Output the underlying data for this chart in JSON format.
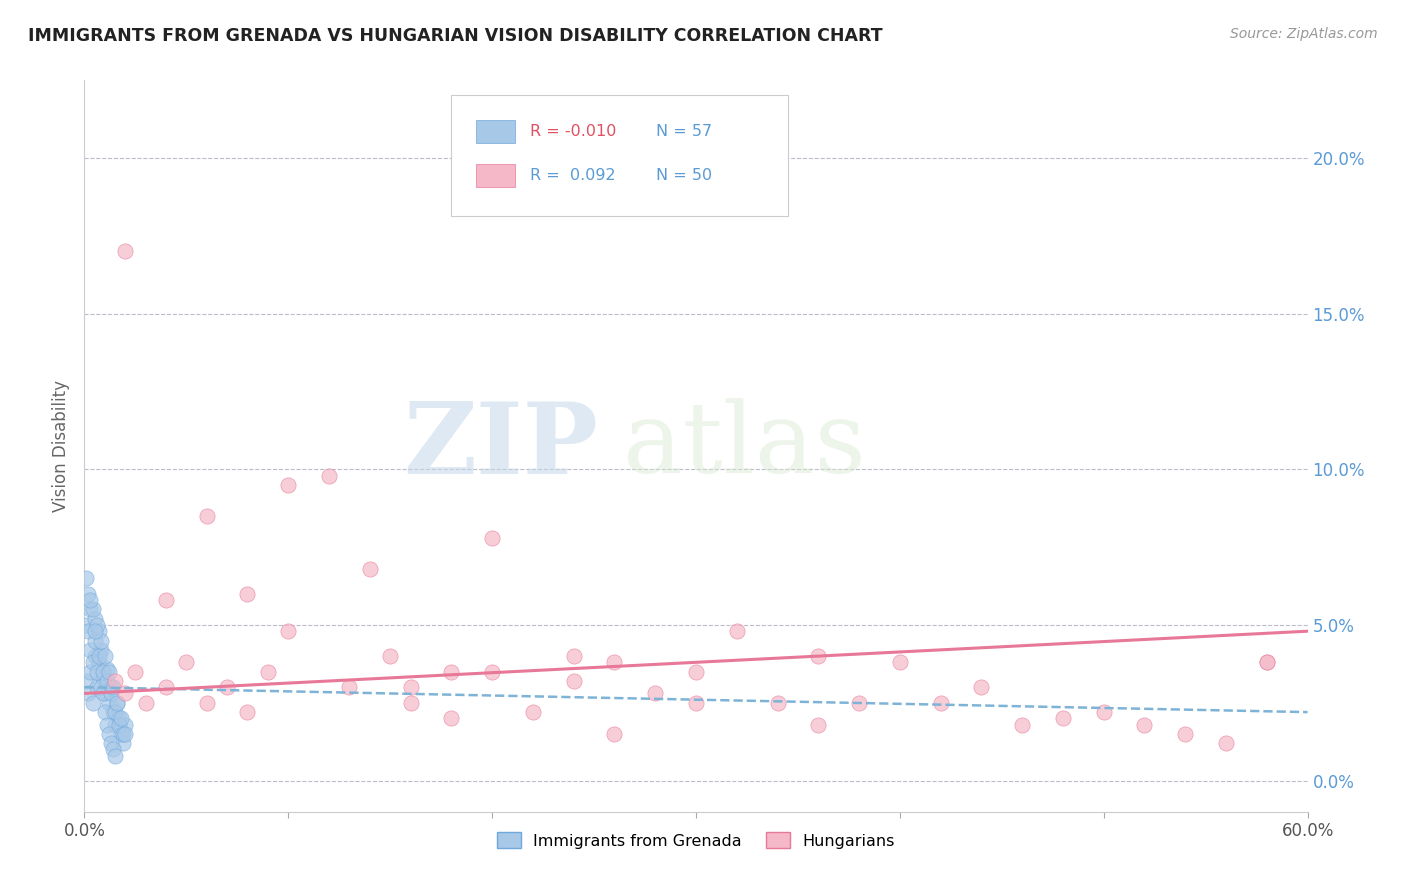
{
  "title": "IMMIGRANTS FROM GRENADA VS HUNGARIAN VISION DISABILITY CORRELATION CHART",
  "source": "Source: ZipAtlas.com",
  "ylabel": "Vision Disability",
  "xlim": [
    0,
    0.6
  ],
  "ylim": [
    -0.01,
    0.225
  ],
  "y_ticks_right": [
    0.0,
    0.05,
    0.1,
    0.15,
    0.2
  ],
  "y_tick_labels_right": [
    "0.0%",
    "5.0%",
    "10.0%",
    "15.0%",
    "20.0%"
  ],
  "legend_label_blue": "Immigrants from Grenada",
  "legend_label_pink": "Hungarians",
  "R_blue": -0.01,
  "N_blue": 57,
  "R_pink": 0.092,
  "N_pink": 50,
  "color_blue": "#A8C8E8",
  "color_blue_dark": "#6FA8DC",
  "color_blue_line": "#7EB3D8",
  "color_pink": "#F4B8C8",
  "color_pink_dark": "#E87898",
  "color_pink_line": "#E87898",
  "color_title": "#222222",
  "color_axis_right": "#5B9BD5",
  "background_color": "#FFFFFF",
  "grid_color": "#BBBBCC",
  "watermark_zip": "ZIP",
  "watermark_atlas": "atlas",
  "blue_scatter_x": [
    0.001,
    0.002,
    0.003,
    0.004,
    0.005,
    0.006,
    0.007,
    0.008,
    0.009,
    0.01,
    0.011,
    0.012,
    0.013,
    0.014,
    0.015,
    0.016,
    0.017,
    0.018,
    0.019,
    0.02,
    0.001,
    0.002,
    0.003,
    0.004,
    0.005,
    0.006,
    0.007,
    0.008,
    0.009,
    0.01,
    0.011,
    0.012,
    0.013,
    0.014,
    0.015,
    0.003,
    0.005,
    0.007,
    0.009,
    0.011,
    0.013,
    0.015,
    0.017,
    0.019,
    0.002,
    0.004,
    0.006,
    0.008,
    0.01,
    0.012,
    0.014,
    0.016,
    0.018,
    0.02,
    0.001,
    0.003,
    0.005
  ],
  "blue_scatter_y": [
    0.032,
    0.028,
    0.035,
    0.025,
    0.04,
    0.03,
    0.038,
    0.042,
    0.033,
    0.028,
    0.036,
    0.025,
    0.03,
    0.022,
    0.018,
    0.025,
    0.02,
    0.015,
    0.012,
    0.018,
    0.05,
    0.048,
    0.042,
    0.038,
    0.045,
    0.035,
    0.04,
    0.03,
    0.028,
    0.022,
    0.018,
    0.015,
    0.012,
    0.01,
    0.008,
    0.055,
    0.052,
    0.048,
    0.035,
    0.032,
    0.028,
    0.022,
    0.018,
    0.015,
    0.06,
    0.055,
    0.05,
    0.045,
    0.04,
    0.035,
    0.03,
    0.025,
    0.02,
    0.015,
    0.065,
    0.058,
    0.048
  ],
  "pink_scatter_x": [
    0.015,
    0.02,
    0.025,
    0.03,
    0.04,
    0.05,
    0.06,
    0.07,
    0.08,
    0.09,
    0.1,
    0.12,
    0.13,
    0.15,
    0.16,
    0.18,
    0.2,
    0.22,
    0.24,
    0.26,
    0.28,
    0.3,
    0.32,
    0.34,
    0.36,
    0.38,
    0.4,
    0.42,
    0.44,
    0.46,
    0.48,
    0.5,
    0.52,
    0.54,
    0.56,
    0.58,
    0.02,
    0.04,
    0.06,
    0.08,
    0.1,
    0.14,
    0.16,
    0.18,
    0.2,
    0.24,
    0.26,
    0.3,
    0.36,
    0.58
  ],
  "pink_scatter_y": [
    0.032,
    0.028,
    0.035,
    0.025,
    0.03,
    0.038,
    0.025,
    0.03,
    0.022,
    0.035,
    0.095,
    0.098,
    0.03,
    0.04,
    0.025,
    0.035,
    0.078,
    0.022,
    0.032,
    0.038,
    0.028,
    0.035,
    0.048,
    0.025,
    0.04,
    0.025,
    0.038,
    0.025,
    0.03,
    0.018,
    0.02,
    0.022,
    0.018,
    0.015,
    0.012,
    0.038,
    0.17,
    0.058,
    0.085,
    0.06,
    0.048,
    0.068,
    0.03,
    0.02,
    0.035,
    0.04,
    0.015,
    0.025,
    0.018,
    0.038
  ],
  "blue_trend_x": [
    0.0,
    0.6
  ],
  "blue_trend_y": [
    0.03,
    0.022
  ],
  "pink_trend_x": [
    0.0,
    0.6
  ],
  "pink_trend_y": [
    0.028,
    0.048
  ]
}
